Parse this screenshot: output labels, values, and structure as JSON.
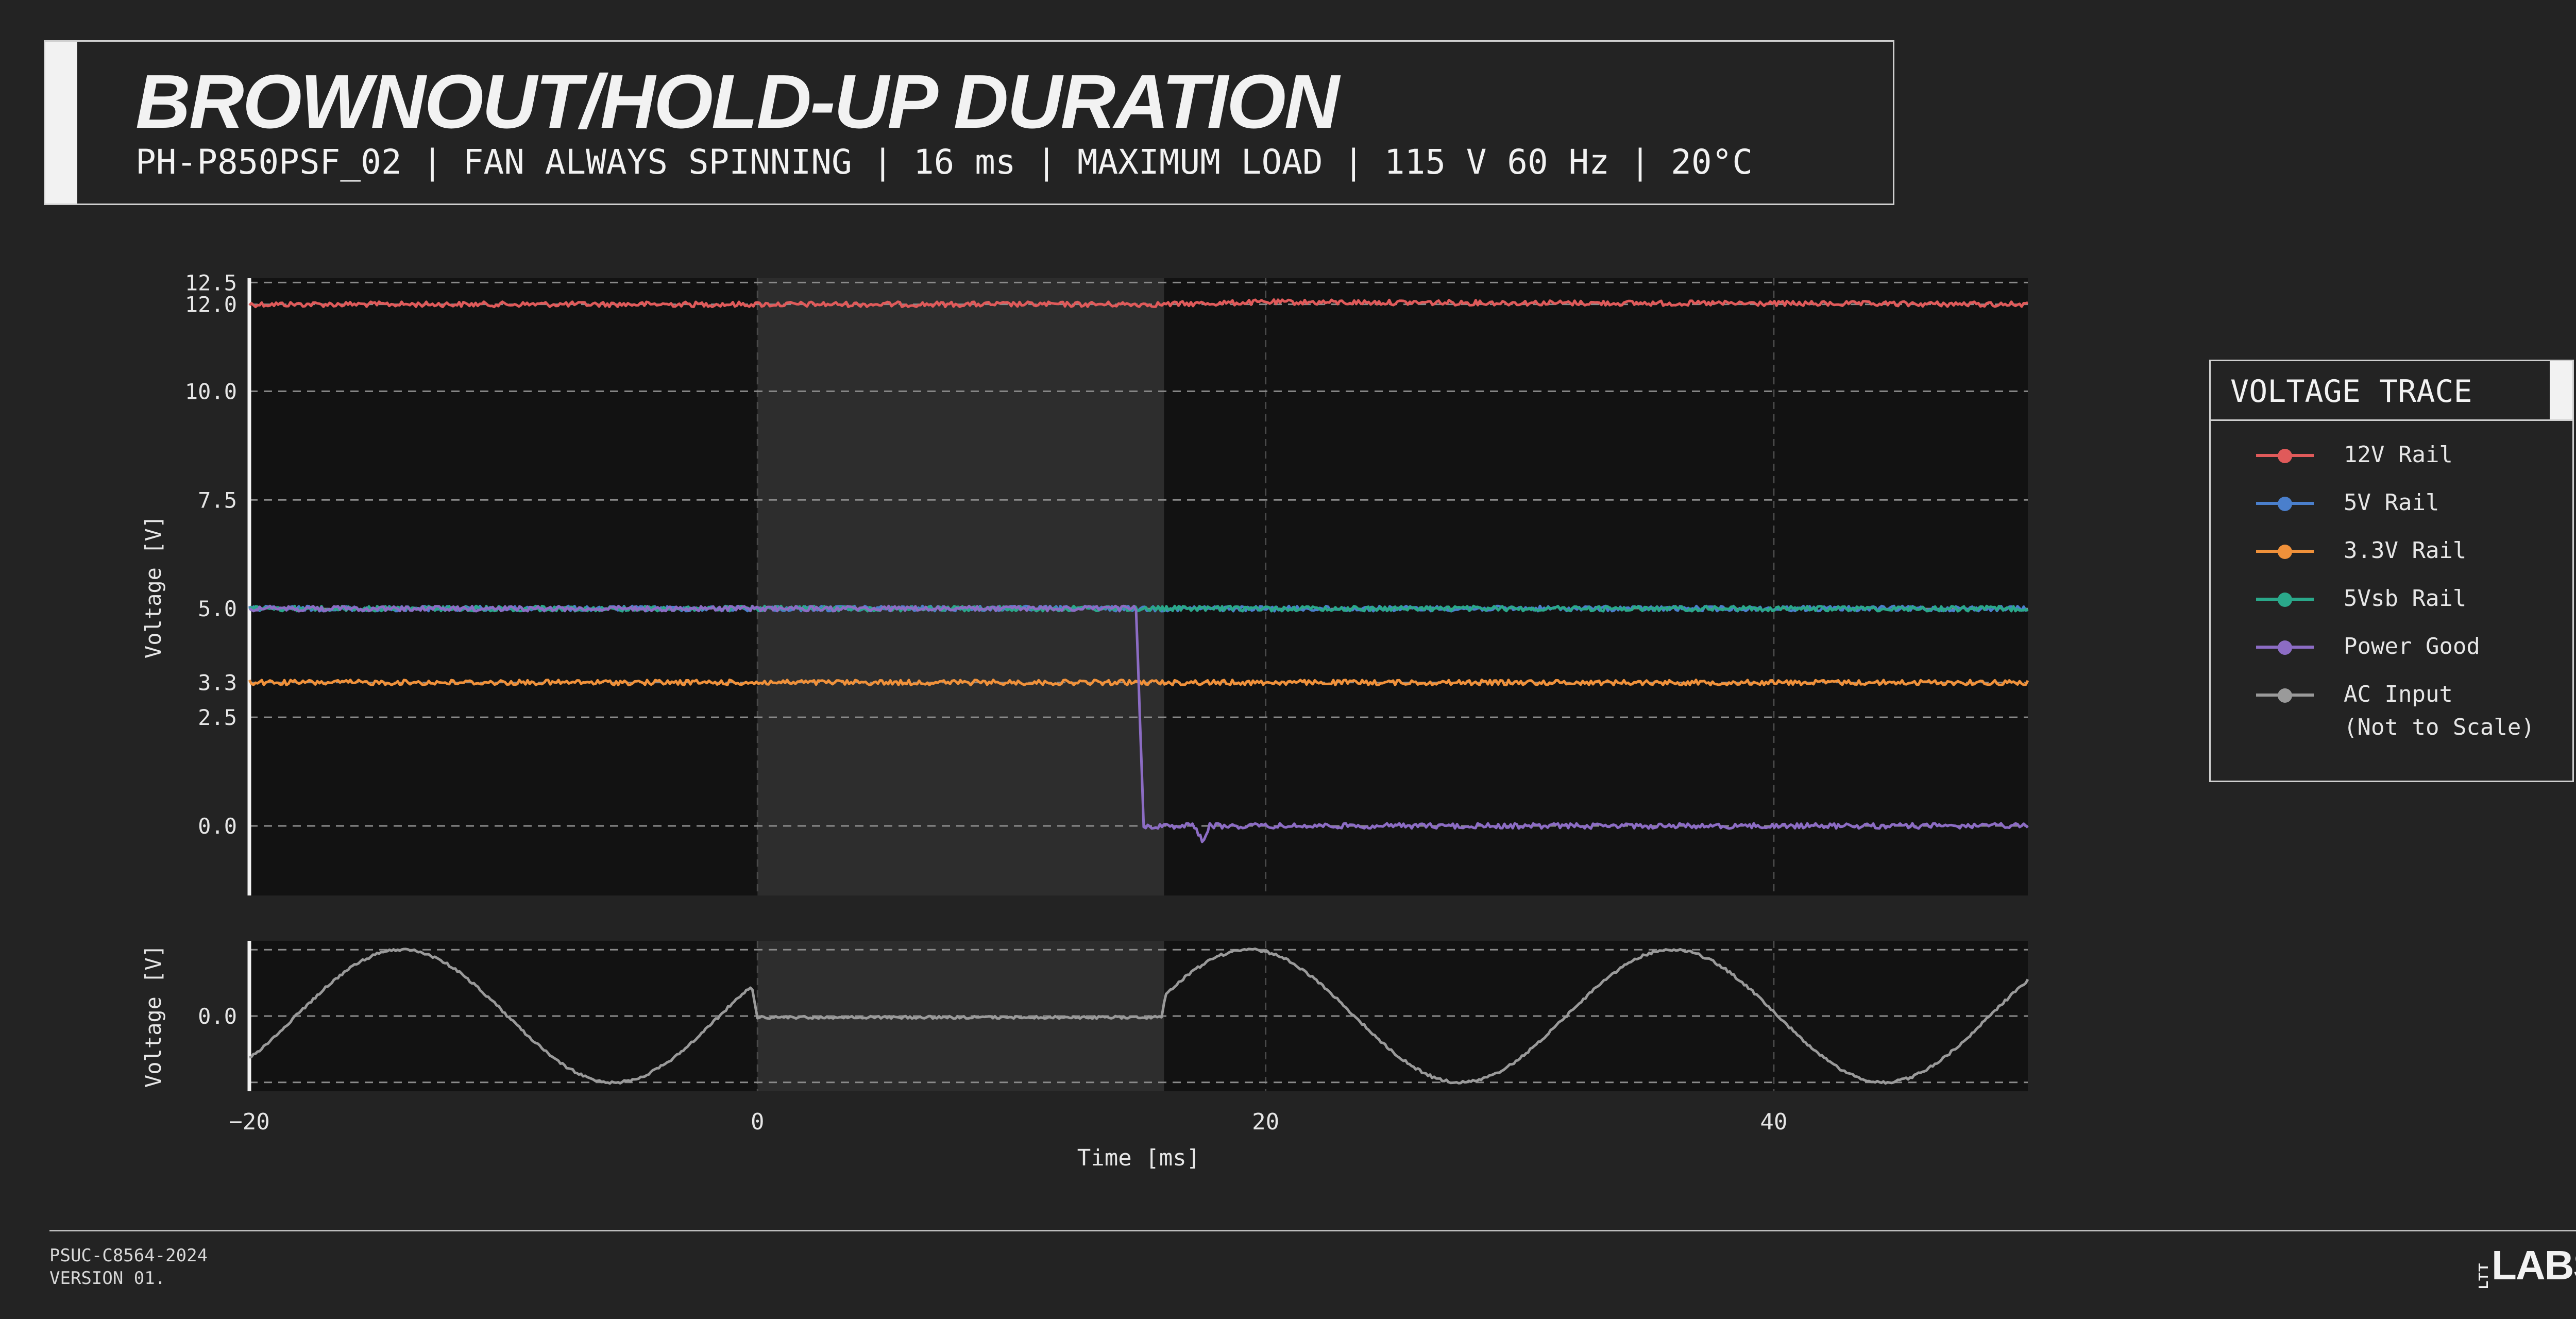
{
  "header": {
    "title": "BROWNOUT/HOLD-UP DURATION",
    "subtitle": "PH-P850PSF_02 | FAN ALWAYS SPINNING | 16 ms | MAXIMUM LOAD | 115 V 60 Hz | 20°C"
  },
  "chart_data": {
    "type": "line",
    "xlabel": "Time [ms]",
    "xlim": [
      -20,
      50
    ],
    "x_ticks": [
      -20,
      0,
      20,
      40
    ],
    "x_tick_labels": [
      "−20",
      "0",
      "20",
      "40"
    ],
    "highlight_region": [
      0,
      16
    ],
    "grid": true,
    "panels": [
      {
        "id": "rails",
        "ylabel": "Voltage [V]",
        "ylim": [
          -1.6,
          12.6
        ],
        "y_ticks": [
          0.0,
          2.5,
          3.3,
          5.0,
          7.5,
          10.0,
          12.0,
          12.5
        ],
        "y_tick_labels": [
          "0.0",
          "2.5",
          "3.3",
          "5.0",
          "7.5",
          "10.0",
          "12.0",
          "12.5"
        ],
        "series": [
          {
            "name": "12V Rail",
            "color": "#e05a5a",
            "x": [
              -20,
              0,
              16,
              20,
              50
            ],
            "y": [
              12.0,
              12.0,
              12.0,
              12.05,
              12.0
            ]
          },
          {
            "name": "5V Rail",
            "color": "#4a7fcc",
            "x": [
              -20,
              15,
              50
            ],
            "y": [
              5.0,
              5.0,
              5.0
            ]
          },
          {
            "name": "3.3V Rail",
            "color": "#f0913a",
            "x": [
              -20,
              50
            ],
            "y": [
              3.3,
              3.3
            ]
          },
          {
            "name": "5Vsb Rail",
            "color": "#2aa88a",
            "x": [
              -20,
              50
            ],
            "y": [
              5.0,
              5.0
            ]
          },
          {
            "name": "Power Good",
            "color": "#8c6cc4",
            "x": [
              -20,
              14.9,
              15.2,
              17.2,
              17.5,
              17.8,
              50
            ],
            "y": [
              5.0,
              5.0,
              0.0,
              0.0,
              -0.35,
              0.0,
              0.0
            ]
          }
        ]
      },
      {
        "id": "ac",
        "ylabel": "Voltage [V]",
        "ylim": [
          -1.1,
          1.1
        ],
        "y_ticks": [
          0.0
        ],
        "y_tick_labels": [
          "0.0"
        ],
        "series": [
          {
            "name": "AC Input (Not to Scale)",
            "color": "#9a9a9a",
            "x": [
              -20,
              -17,
              -14,
              -11,
              -8,
              -5,
              -3,
              -1,
              -0.2,
              0,
              2,
              6,
              10,
              14,
              15.9,
              16,
              17,
              18,
              19,
              20,
              22,
              24.7,
              28,
              31.7,
              35.5,
              39,
              42.7,
              46.5,
              50
            ],
            "y": [
              -0.63,
              0.55,
              0.97,
              0.55,
              -0.55,
              -0.97,
              -0.7,
              0.2,
              0.38,
              -0.02,
              -0.02,
              -0.02,
              -0.02,
              -0.02,
              -0.02,
              0.2,
              0.82,
              0.92,
              0.97,
              0.94,
              0.5,
              -0.1,
              -0.97,
              -0.4,
              0.97,
              0.55,
              -0.55,
              -0.97,
              0.52
            ]
          }
        ]
      }
    ]
  },
  "legend": {
    "title": "VOLTAGE TRACE",
    "items": [
      {
        "label": "12V Rail",
        "color": "#e05a5a"
      },
      {
        "label": "5V Rail",
        "color": "#4a7fcc"
      },
      {
        "label": "3.3V Rail",
        "color": "#f0913a"
      },
      {
        "label": "5Vsb Rail",
        "color": "#2aa88a"
      },
      {
        "label": "Power Good",
        "color": "#8c6cc4"
      },
      {
        "label": "AC Input\n(Not to Scale)",
        "color": "#9a9a9a"
      }
    ]
  },
  "footer": {
    "code": "PSUC-C8564-2024",
    "version": "VERSION 01.",
    "logo_small": "LTT",
    "logo_big": "LABS"
  }
}
